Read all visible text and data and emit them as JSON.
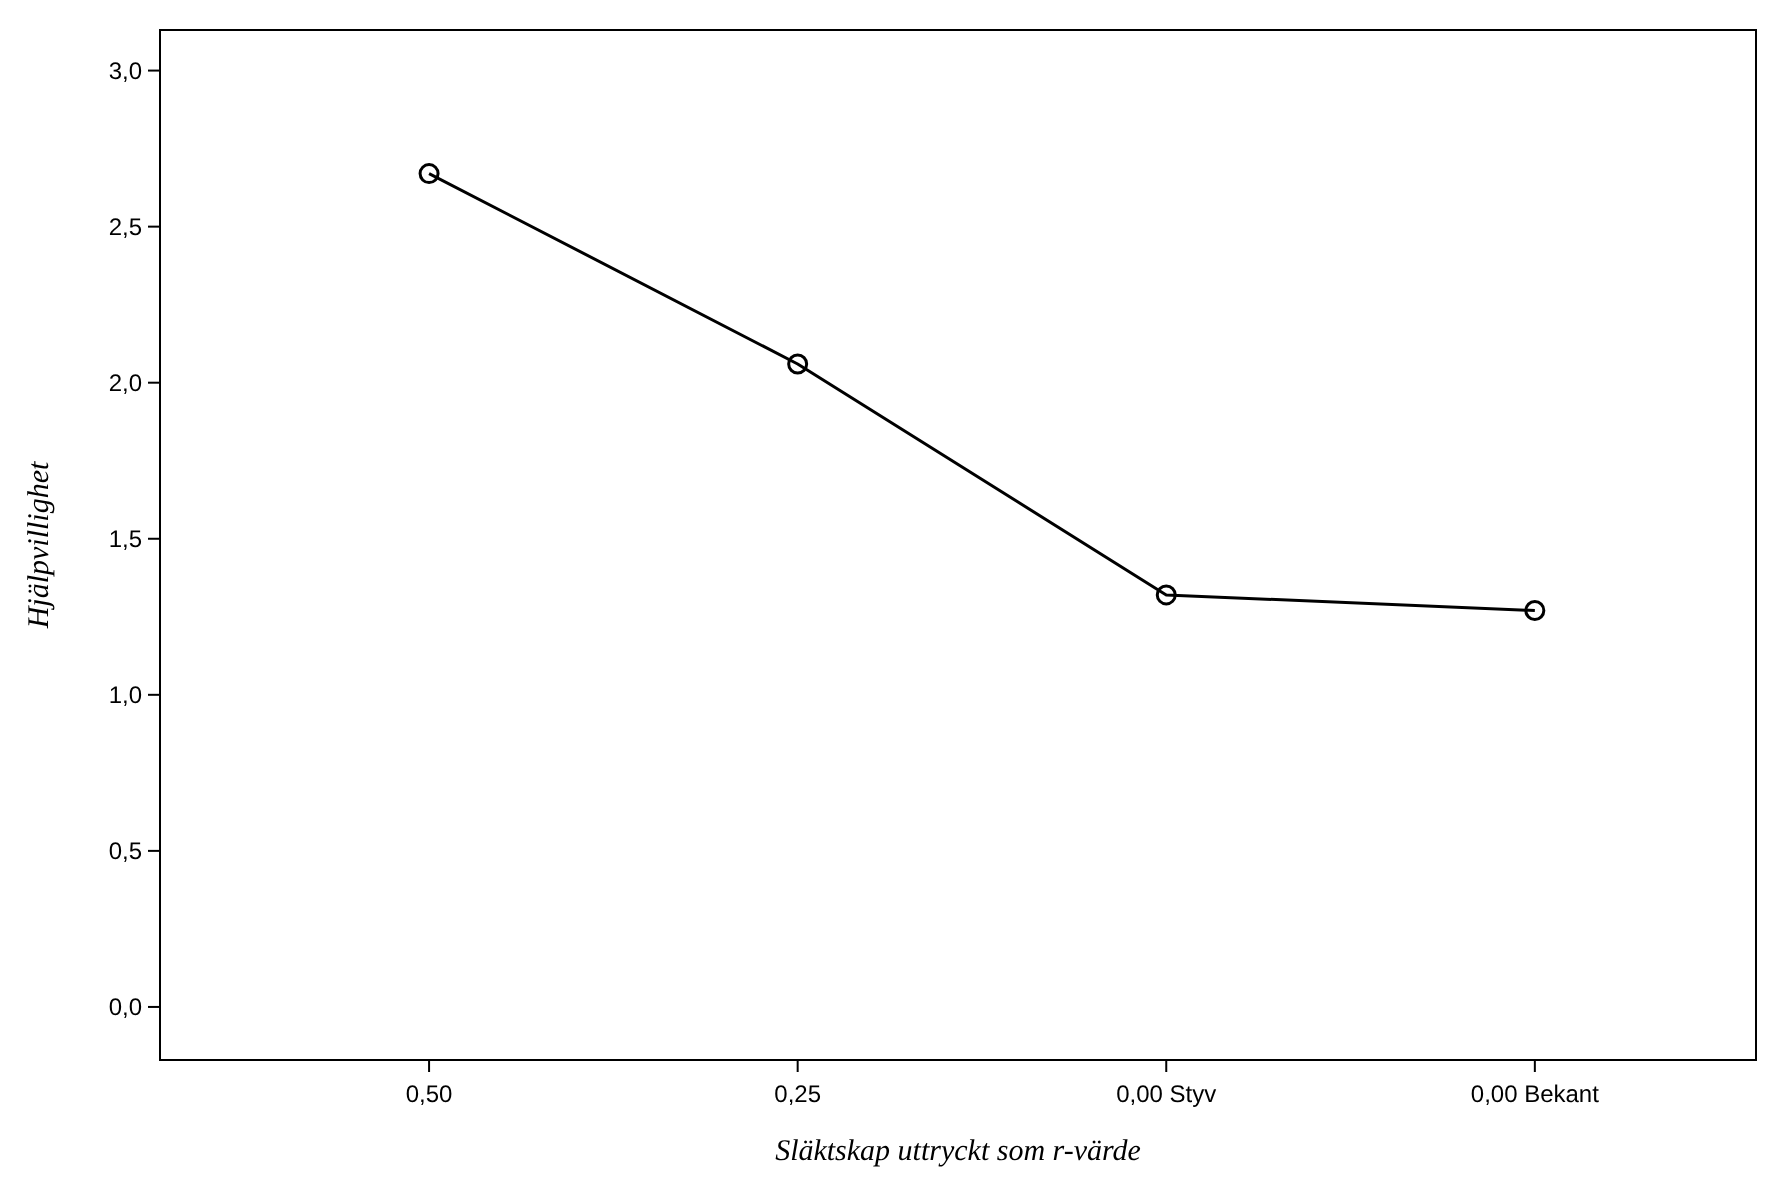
{
  "chart_data": {
    "type": "line",
    "xlabel": "Släktskap uttryckt som r-värde",
    "ylabel": "Hjälpvillighet",
    "categories": [
      "0,50",
      "0,25",
      "0,00 Styv",
      "0,00 Bekant"
    ],
    "series": [
      {
        "color": "#000000",
        "values": [
          2.67,
          2.06,
          1.32,
          1.27
        ]
      }
    ],
    "ylim": [
      -0.17,
      3.13
    ],
    "yticks": [
      {
        "value": 0,
        "label": "0,0"
      },
      {
        "value": 0.5,
        "label": "0,5"
      },
      {
        "value": 1,
        "label": "1,0"
      },
      {
        "value": 1.5,
        "label": "1,5"
      },
      {
        "value": 2,
        "label": "2,0"
      },
      {
        "value": 2.5,
        "label": "2,5"
      },
      {
        "value": 3,
        "label": "3,0"
      }
    ],
    "marker": "circle",
    "line_style": "solid"
  }
}
